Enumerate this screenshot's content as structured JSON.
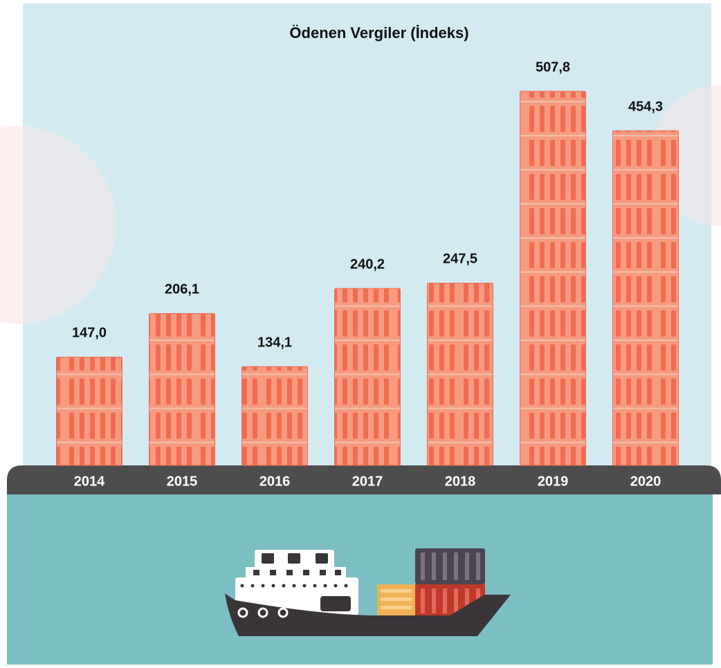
{
  "chart_data": {
    "type": "bar",
    "title": "Ödenen Vergiler (İndeks)",
    "categories": [
      "2014",
      "2015",
      "2016",
      "2017",
      "2018",
      "2019",
      "2020"
    ],
    "values": [
      147.0,
      206.1,
      134.1,
      240.2,
      247.5,
      507.8,
      454.3
    ],
    "value_labels": [
      "147,0",
      "206,1",
      "134,1",
      "240,2",
      "247,5",
      "507,8",
      "454,3"
    ],
    "color": "#f26b4f"
  }
}
